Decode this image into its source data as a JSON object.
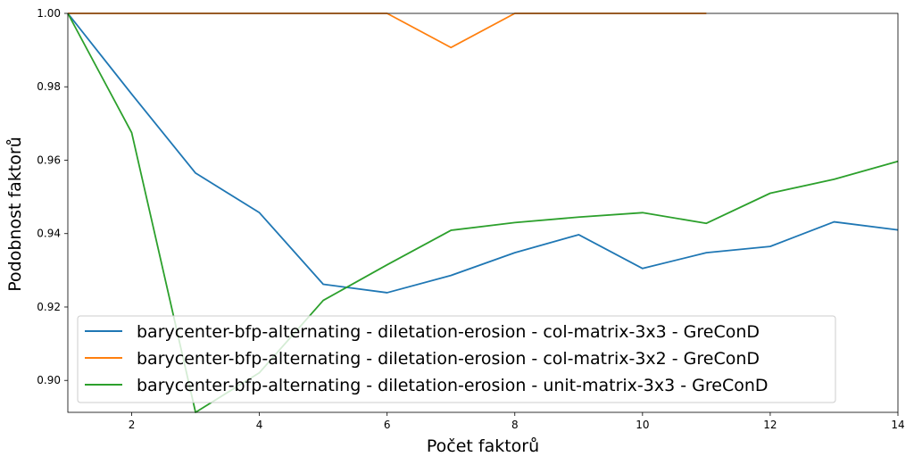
{
  "chart_data": {
    "type": "line",
    "xlabel": "Počet faktorů",
    "ylabel": "Podobnost faktorů",
    "xlim": [
      1,
      14
    ],
    "ylim": [
      0.8913,
      1.0
    ],
    "xticks": [
      2,
      4,
      6,
      8,
      10,
      12,
      14
    ],
    "xtick_labels": [
      "2",
      "4",
      "6",
      "8",
      "10",
      "12",
      "14"
    ],
    "yticks": [
      0.9,
      0.92,
      0.94,
      0.96,
      0.98,
      1.0
    ],
    "ytick_labels": [
      "0.90",
      "0.92",
      "0.94",
      "0.96",
      "0.98",
      "1.00"
    ],
    "grid": false,
    "legend_position": "lower-center",
    "series": [
      {
        "name": "barycenter-bfp-alternating - diletation-erosion - col-matrix-3x3 - GreConD",
        "color": "#1f77b4",
        "x": [
          1,
          2,
          3,
          4,
          5,
          6,
          7,
          8,
          9,
          10,
          11,
          12,
          13,
          14
        ],
        "y": [
          1.0,
          0.978,
          0.9565,
          0.9457,
          0.9262,
          0.9239,
          0.9286,
          0.9348,
          0.9397,
          0.9305,
          0.9348,
          0.9365,
          0.9432,
          0.941
        ]
      },
      {
        "name": "barycenter-bfp-alternating - diletation-erosion - col-matrix-3x2 - GreConD",
        "color": "#ff7f0e",
        "x": [
          1,
          2,
          3,
          4,
          5,
          6,
          7,
          8,
          9,
          10,
          11
        ],
        "y": [
          1.0,
          1.0,
          1.0,
          1.0,
          1.0,
          1.0,
          0.9907,
          1.0,
          1.0,
          1.0,
          1.0
        ]
      },
      {
        "name": "barycenter-bfp-alternating - diletation-erosion - unit-matrix-3x3 - GreConD",
        "color": "#2ca02c",
        "x": [
          1,
          2,
          3,
          4,
          5,
          6,
          7,
          8,
          9,
          10,
          11,
          12,
          13,
          14
        ],
        "y": [
          1.0,
          0.9675,
          0.8913,
          0.9021,
          0.9218,
          0.9315,
          0.9409,
          0.943,
          0.9445,
          0.9457,
          0.9428,
          0.951,
          0.9548,
          0.9597
        ]
      }
    ]
  }
}
